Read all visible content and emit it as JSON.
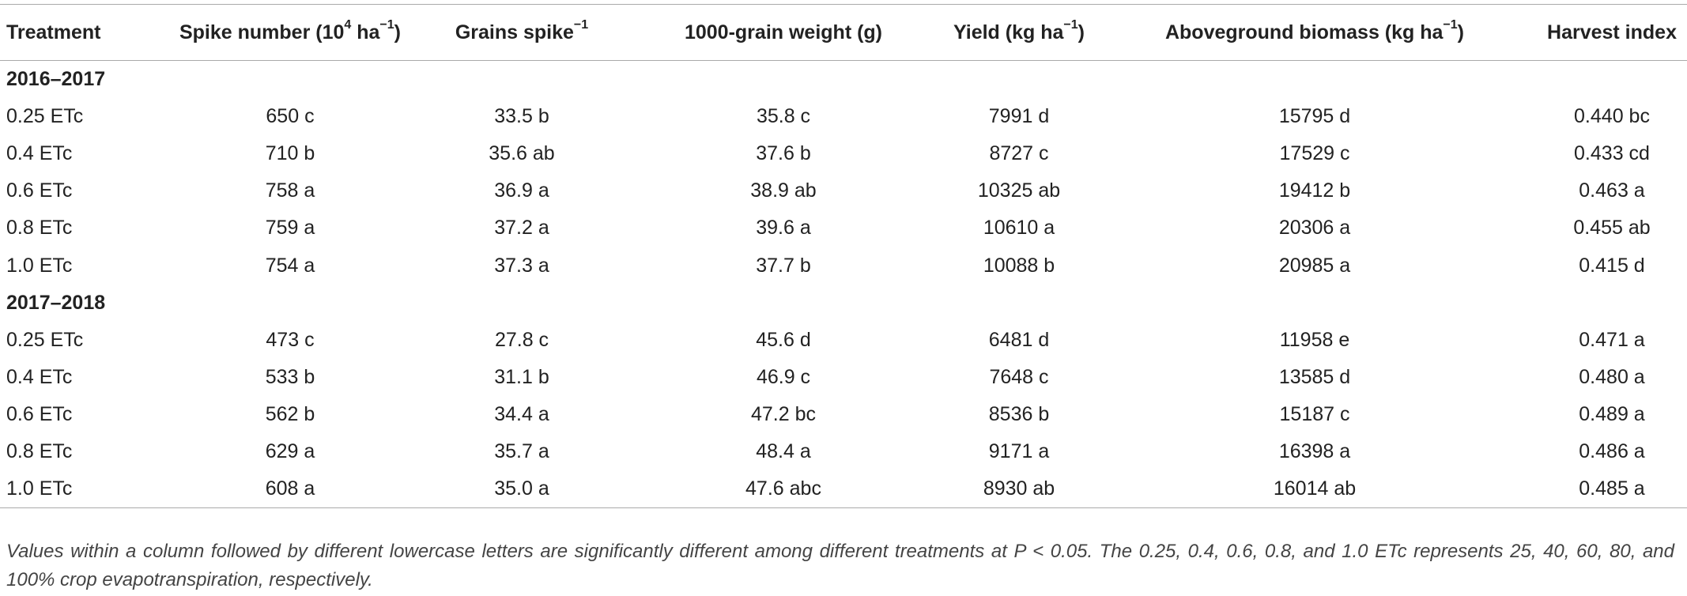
{
  "table": {
    "header": [
      [
        "Treatment"
      ],
      [
        "Spike number (10",
        "4",
        " ha",
        "−1",
        ")"
      ],
      [
        "Grains spike",
        "−1"
      ],
      [
        "1000-grain weight (g)"
      ],
      [
        "Yield (kg ha",
        "−1",
        ")"
      ],
      [
        "Aboveground biomass (kg ha",
        "−1",
        ")"
      ],
      [
        "Harvest index"
      ]
    ],
    "sections": [
      {
        "label": "2016–2017",
        "rows": [
          [
            "0.25 ETc",
            "650 c",
            "33.5 b",
            "35.8 c",
            "7991 d",
            "15795 d",
            "0.440 bc"
          ],
          [
            "0.4 ETc",
            "710 b",
            "35.6 ab",
            "37.6 b",
            "8727 c",
            "17529 c",
            "0.433 cd"
          ],
          [
            "0.6 ETc",
            "758 a",
            "36.9 a",
            "38.9 ab",
            "10325 ab",
            "19412 b",
            "0.463 a"
          ],
          [
            "0.8 ETc",
            "759 a",
            "37.2 a",
            "39.6 a",
            "10610 a",
            "20306 a",
            "0.455 ab"
          ],
          [
            "1.0 ETc",
            "754 a",
            "37.3 a",
            "37.7 b",
            "10088 b",
            "20985 a",
            "0.415 d"
          ]
        ]
      },
      {
        "label": "2017–2018",
        "rows": [
          [
            "0.25 ETc",
            "473 c",
            "27.8 c",
            "45.6 d",
            "6481 d",
            "11958 e",
            "0.471 a"
          ],
          [
            "0.4 ETc",
            "533 b",
            "31.1 b",
            "46.9 c",
            "7648 c",
            "13585 d",
            "0.480 a"
          ],
          [
            "0.6 ETc",
            "562 b",
            "34.4 a",
            "47.2 bc",
            "8536 b",
            "15187 c",
            "0.489 a"
          ],
          [
            "0.8 ETc",
            "629 a",
            "35.7 a",
            "48.4 a",
            "9171 a",
            "16398 a",
            "0.486 a"
          ],
          [
            "1.0 ETc",
            "608 a",
            "35.0 a",
            "47.6 abc",
            "8930 ab",
            "16014 ab",
            "0.485 a"
          ]
        ]
      }
    ],
    "footnote": "Values within a column followed by different lowercase letters are significantly different among different treatments at P < 0.05. The 0.25, 0.4, 0.6, 0.8, and 1.0 ETc represents 25, 40, 60, 80, and 100% crop evapotranspiration, respectively."
  }
}
